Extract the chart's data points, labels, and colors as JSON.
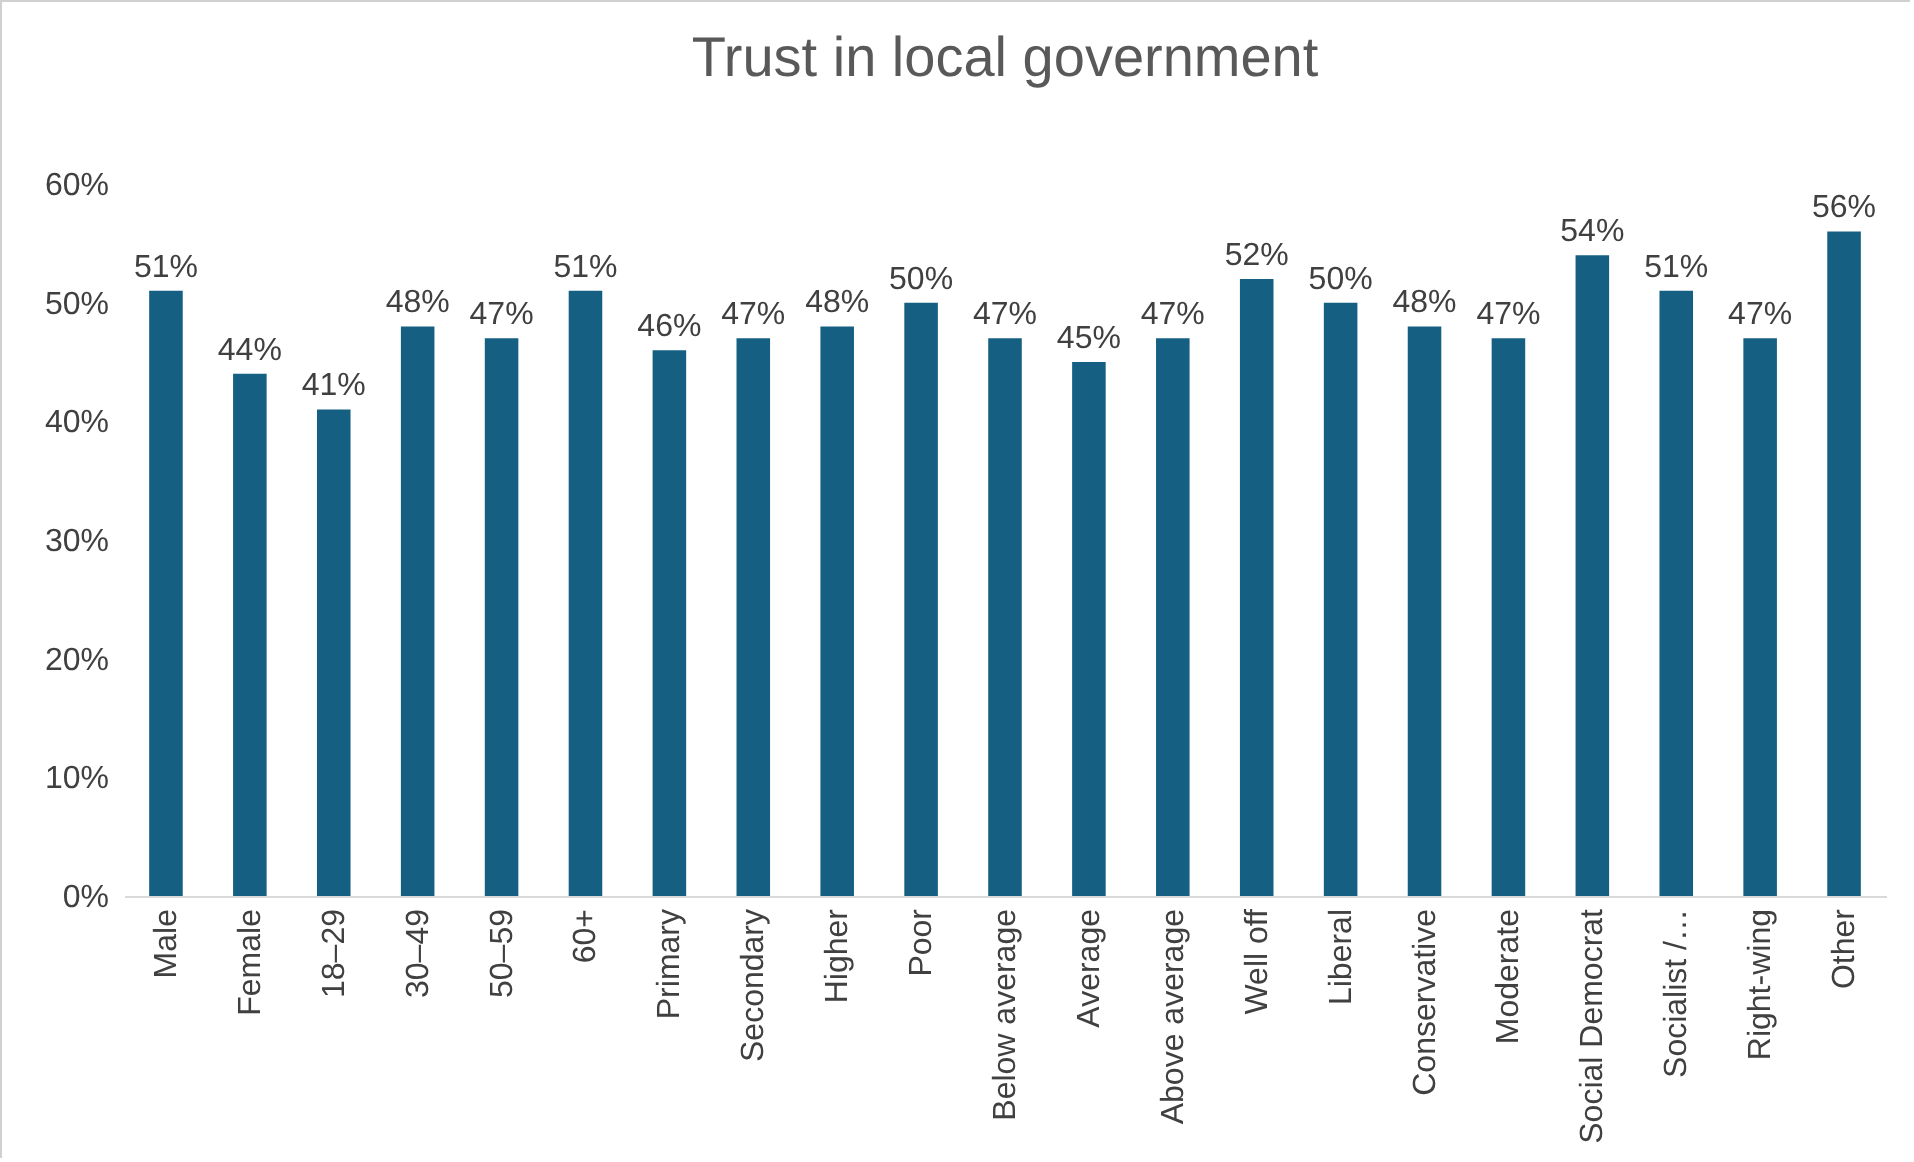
{
  "chart_data": {
    "type": "bar",
    "title": "Trust in local government",
    "categories": [
      "Male",
      "Female",
      "18–29",
      "30–49",
      "50–59",
      "60+",
      "Primary",
      "Secondary",
      "Higher",
      "Poor",
      "Below average",
      "Average",
      "Above average",
      "Well off",
      "Liberal",
      "Conservative",
      "Moderate",
      "Social Democrat",
      "Socialist /…",
      "Right-wing",
      "Other"
    ],
    "values": [
      51,
      44,
      41,
      48,
      47,
      51,
      46,
      47,
      48,
      50,
      47,
      45,
      47,
      52,
      50,
      48,
      47,
      54,
      51,
      47,
      56
    ],
    "value_labels": [
      "51%",
      "44%",
      "41%",
      "48%",
      "47%",
      "51%",
      "46%",
      "47%",
      "48%",
      "50%",
      "47%",
      "45%",
      "47%",
      "52%",
      "50%",
      "48%",
      "47%",
      "54%",
      "51%",
      "47%",
      "56%"
    ],
    "color": "#156082",
    "ylim": [
      0,
      60
    ],
    "yticks": [
      {
        "value": 0,
        "label": "0%"
      },
      {
        "value": 10,
        "label": "10%"
      },
      {
        "value": 20,
        "label": "20%"
      },
      {
        "value": 30,
        "label": "30%"
      },
      {
        "value": 40,
        "label": "40%"
      },
      {
        "value": 50,
        "label": "50%"
      },
      {
        "value": 60,
        "label": "60%"
      }
    ],
    "grid": false
  }
}
